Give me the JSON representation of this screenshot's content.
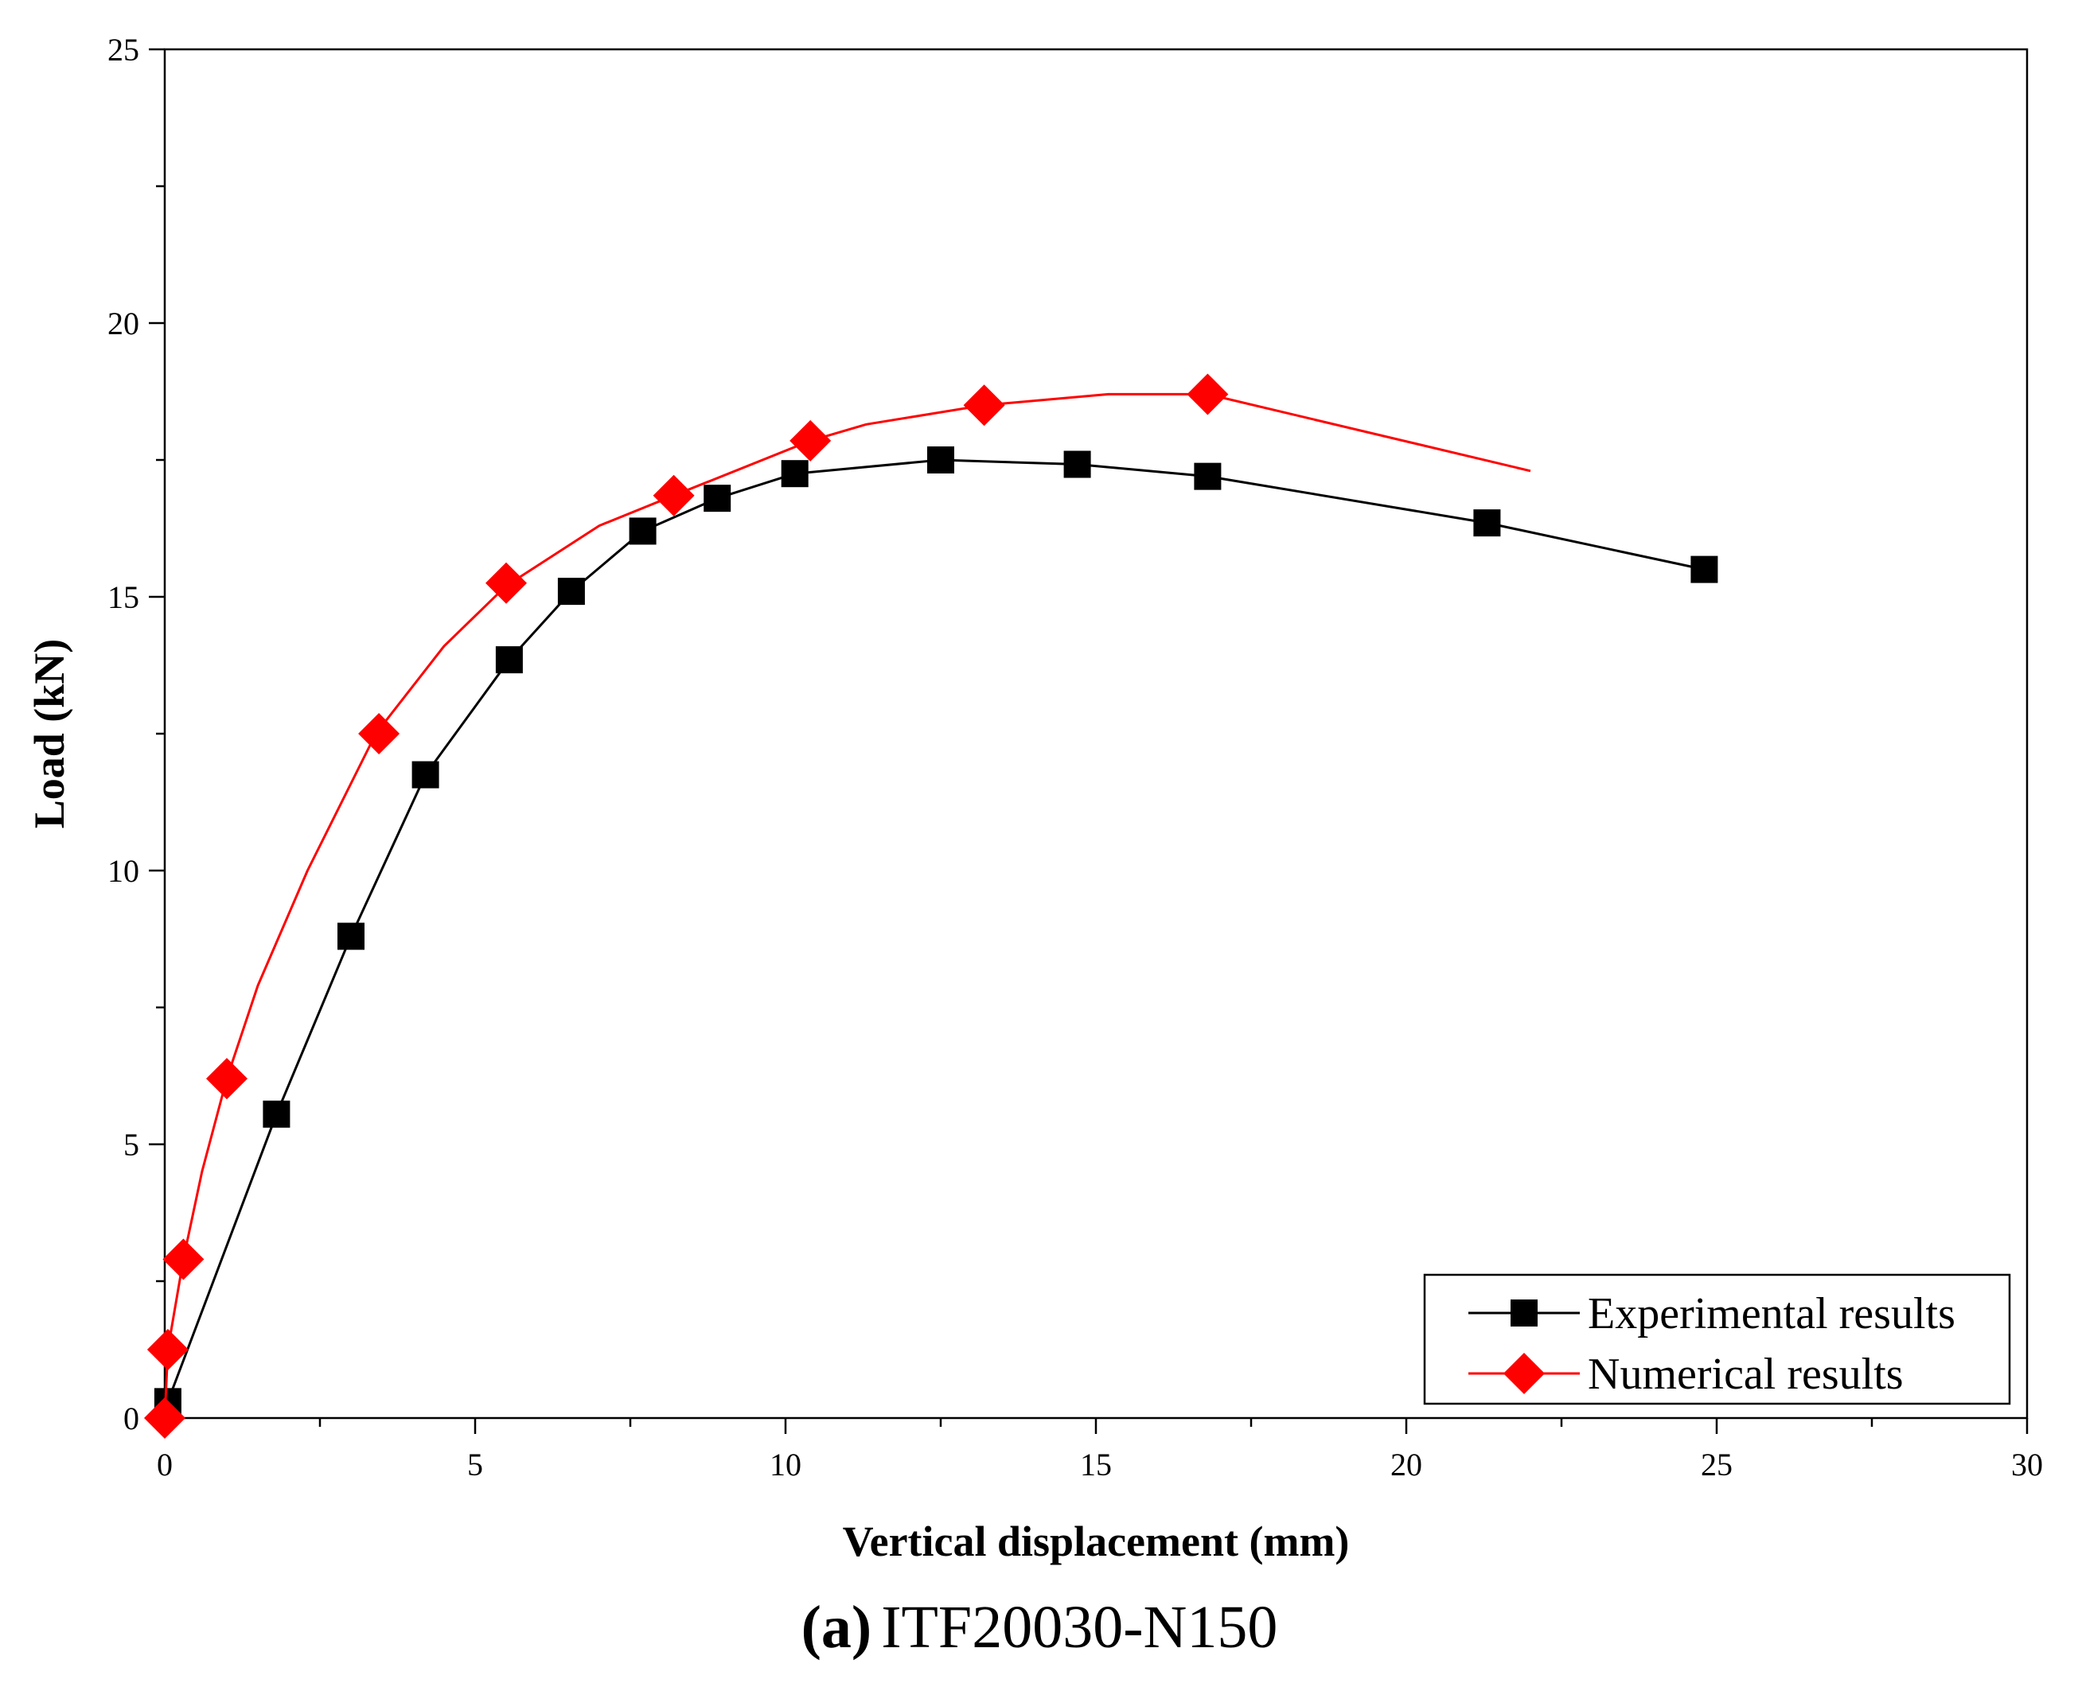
{
  "chart_data": {
    "type": "line",
    "title": "",
    "caption": {
      "label": "(a)",
      "text": "ITF20030-N150"
    },
    "xlabel": "Vertical displacement (mm)",
    "ylabel": "Load (kN)",
    "xlim": [
      0,
      30
    ],
    "ylim": [
      0,
      25
    ],
    "xticks": [
      0,
      5,
      10,
      15,
      20,
      25,
      30
    ],
    "yticks": [
      0,
      5,
      10,
      15,
      20,
      25
    ],
    "xtick_labels": [
      "0",
      "5",
      "10",
      "15",
      "20",
      "25",
      "30"
    ],
    "ytick_labels": [
      "0",
      "5",
      "10",
      "15",
      "20",
      "25"
    ],
    "grid": false,
    "legend_position": "bottom-right",
    "series": [
      {
        "name": "Experimental results",
        "color": "#000000",
        "marker": "square",
        "line_points": [
          [
            0.05,
            0.3
          ],
          [
            1.8,
            5.55
          ],
          [
            3.0,
            8.8
          ],
          [
            4.2,
            11.75
          ],
          [
            5.55,
            13.85
          ],
          [
            6.55,
            15.1
          ],
          [
            7.7,
            16.2
          ],
          [
            8.9,
            16.8
          ],
          [
            10.15,
            17.25
          ],
          [
            12.5,
            17.5
          ],
          [
            14.7,
            17.42
          ],
          [
            16.8,
            17.2
          ],
          [
            21.3,
            16.35
          ],
          [
            24.8,
            15.5
          ]
        ],
        "marker_points": [
          [
            0.05,
            0.3
          ],
          [
            1.8,
            5.55
          ],
          [
            3.0,
            8.8
          ],
          [
            4.2,
            11.75
          ],
          [
            5.55,
            13.85
          ],
          [
            6.55,
            15.1
          ],
          [
            7.7,
            16.2
          ],
          [
            8.9,
            16.8
          ],
          [
            10.15,
            17.25
          ],
          [
            12.5,
            17.5
          ],
          [
            14.7,
            17.42
          ],
          [
            16.8,
            17.2
          ],
          [
            21.3,
            16.35
          ],
          [
            24.8,
            15.5
          ]
        ]
      },
      {
        "name": "Numerical results",
        "color": "#ff0000",
        "marker": "diamond",
        "line_points": [
          [
            0.0,
            0.0
          ],
          [
            0.05,
            1.25
          ],
          [
            0.3,
            2.9
          ],
          [
            0.6,
            4.5
          ],
          [
            1.0,
            6.2
          ],
          [
            1.5,
            7.9
          ],
          [
            2.3,
            10.0
          ],
          [
            3.4,
            12.5
          ],
          [
            4.5,
            14.1
          ],
          [
            5.5,
            15.2
          ],
          [
            7.0,
            16.3
          ],
          [
            8.2,
            16.85
          ],
          [
            10.4,
            17.85
          ],
          [
            11.3,
            18.15
          ],
          [
            13.2,
            18.5
          ],
          [
            15.2,
            18.7
          ],
          [
            16.8,
            18.7
          ],
          [
            22.0,
            17.3
          ]
        ],
        "marker_points": [
          [
            0.0,
            0.0
          ],
          [
            0.05,
            1.25
          ],
          [
            0.3,
            2.9
          ],
          [
            1.0,
            6.2
          ],
          [
            3.45,
            12.5
          ],
          [
            5.5,
            15.25
          ],
          [
            8.2,
            16.85
          ],
          [
            10.4,
            17.85
          ],
          [
            13.2,
            18.5
          ],
          [
            16.8,
            18.7
          ]
        ]
      }
    ]
  }
}
